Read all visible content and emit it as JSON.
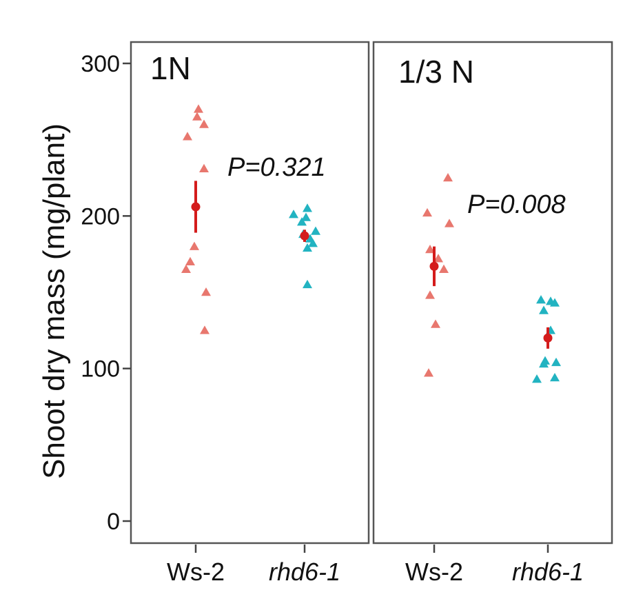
{
  "chart_data": {
    "type": "scatter",
    "ylabel": "Shoot dry mass (mg/plant)",
    "ylim": [
      0,
      300
    ],
    "yticks": [
      0,
      100,
      200,
      300
    ],
    "categories": [
      "Ws-2",
      "rhd6-1"
    ],
    "category_styles": [
      "normal",
      "italic"
    ],
    "panels": [
      {
        "title": "1N",
        "p_value_label": "P=0.321",
        "groups": [
          {
            "name": "Ws-2",
            "color": "#e8776e",
            "points": [
              270,
              265,
              260,
              252,
              231,
              180,
              170,
              165,
              150,
              125
            ],
            "mean": 206,
            "error": [
              189,
              223
            ],
            "mean_color": "#d41c1c"
          },
          {
            "name": "rhd6-1",
            "color": "#22b3c1",
            "points": [
              205,
              201,
              199,
              196,
              190,
              188,
              185,
              182,
              179,
              155
            ],
            "mean": 187,
            "error": [
              183,
              191
            ],
            "mean_color": "#d41c1c"
          }
        ]
      },
      {
        "title": "1/3 N",
        "p_value_label": "P=0.008",
        "groups": [
          {
            "name": "Ws-2",
            "color": "#e8776e",
            "points": [
              225,
              202,
              195,
              178,
              172,
              165,
              148,
              129,
              97
            ],
            "mean": 167,
            "error": [
              154,
              180
            ],
            "mean_color": "#d41c1c"
          },
          {
            "name": "rhd6-1",
            "color": "#22b3c1",
            "points": [
              145,
              144,
              143,
              138,
              125,
              105,
              104,
              103,
              94,
              93
            ],
            "mean": 120,
            "error": [
              113,
              127
            ],
            "mean_color": "#d41c1c"
          }
        ]
      }
    ]
  }
}
